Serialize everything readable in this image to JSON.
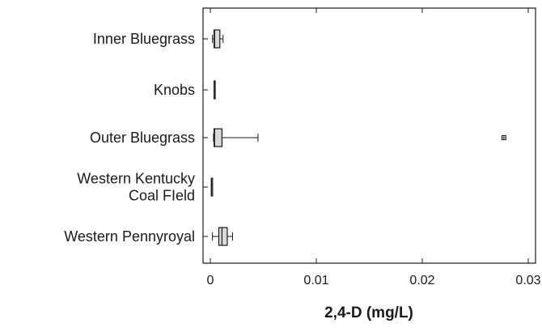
{
  "chart_data": {
    "type": "box",
    "xlabel": "2,4-D (mg/L)",
    "xlim": [
      0,
      0.03
    ],
    "xticks": [
      0,
      0.01,
      0.02,
      0.03
    ],
    "xtick_labels": [
      "0",
      "0.01",
      "0.02",
      "0.03"
    ],
    "categories": [
      "Inner Bluegrass",
      "Knobs",
      "Outer Bluegrass",
      "Western Kentucky Coal Field",
      "Western Pennyroyal"
    ],
    "category_label_lines": [
      [
        "Inner Bluegrass"
      ],
      [
        "Knobs"
      ],
      [
        "Outer Bluegrass"
      ],
      [
        "Western Kentucky",
        "Coal FIeld"
      ],
      [
        "Western Pennyroyal"
      ]
    ],
    "boxes": [
      {
        "name": "Inner Bluegrass",
        "min": 0.0002,
        "q1": 0.00035,
        "median": 0.0004,
        "q3": 0.0009,
        "max": 0.0012,
        "outliers": []
      },
      {
        "name": "Knobs",
        "min": 0.00035,
        "q1": 0.00035,
        "median": 0.00035,
        "q3": 0.00035,
        "max": 0.00035,
        "outliers": []
      },
      {
        "name": "Outer Bluegrass",
        "min": 0.0003,
        "q1": 0.00035,
        "median": 0.0004,
        "q3": 0.0011,
        "max": 0.0045,
        "outliers": [
          0.0277
        ]
      },
      {
        "name": "Western Kentucky Coal Field",
        "min": 0.0001,
        "q1": 0.0001,
        "median": 0.0001,
        "q3": 0.0001,
        "max": 0.0001,
        "outliers": []
      },
      {
        "name": "Western Pennyroyal",
        "min": 0.0002,
        "q1": 0.0008,
        "median": 0.0011,
        "q3": 0.0016,
        "max": 0.0021,
        "outliers": []
      }
    ],
    "grid": false,
    "legend": "none",
    "colors": {
      "box_fill": "#d9d9d9",
      "stroke": "#1a1a1a"
    }
  }
}
